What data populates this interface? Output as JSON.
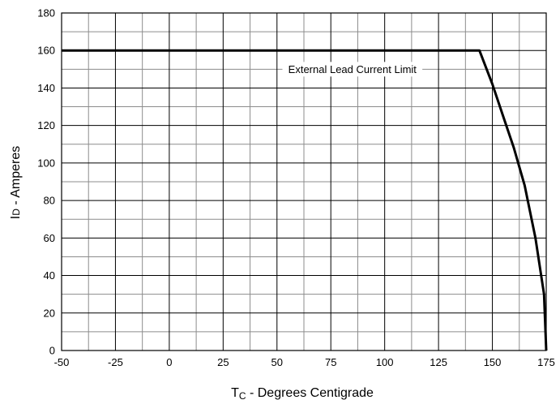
{
  "chart_data": {
    "type": "line",
    "title": "",
    "xlabel_main": "T",
    "xlabel_sub": "C",
    "xlabel_rest": " - Degrees Centigrade",
    "ylabel_main": "I",
    "ylabel_sub": "D",
    "ylabel_rest": " - Amperes",
    "xlim": [
      -50,
      175
    ],
    "ylim": [
      0,
      180
    ],
    "x_ticks": [
      "-50",
      "-25",
      "0",
      "25",
      "50",
      "75",
      "100",
      "125",
      "150",
      "175"
    ],
    "y_ticks": [
      "0",
      "20",
      "40",
      "60",
      "80",
      "100",
      "120",
      "140",
      "160",
      "180"
    ],
    "grid": true,
    "legend": "none",
    "line_color": "#000000",
    "grid_major_color": "#000000",
    "grid_minor_color": "#8c8c8c",
    "annotation": {
      "text": "External Lead Current Limit",
      "x": 85,
      "y": 150
    },
    "series": [
      {
        "points": [
          [
            -50,
            160
          ],
          [
            144,
            160
          ],
          [
            150,
            142
          ],
          [
            155,
            125
          ],
          [
            160,
            108
          ],
          [
            165,
            88
          ],
          [
            170,
            60
          ],
          [
            174,
            30
          ],
          [
            175,
            0
          ]
        ]
      }
    ]
  }
}
